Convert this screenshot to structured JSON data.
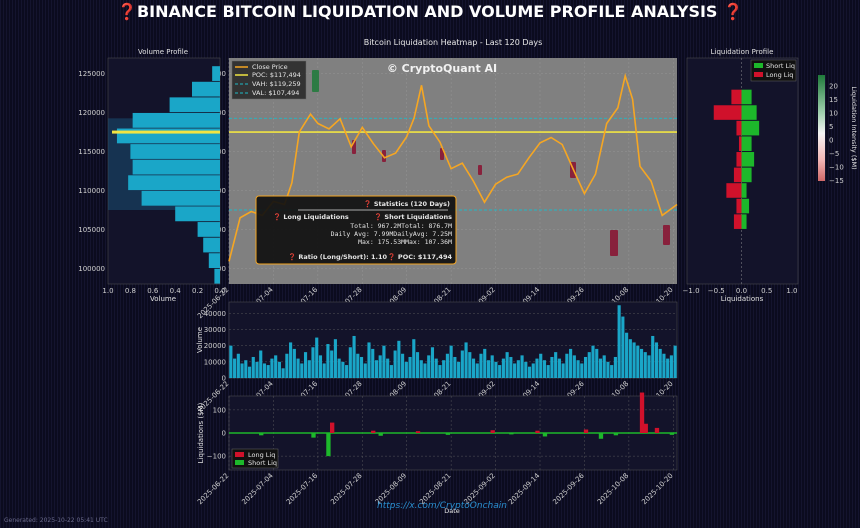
{
  "title": "❓BINANCE BITCOIN LIQUIDATION AND VOLUME PROFILE ANALYSIS ❓",
  "source_url": "https://x.com/CryptoOnchain",
  "watermark": "© CryptoQuant AI",
  "generated_note": "Generated: 2025-10-22 05:41 UTC",
  "colors": {
    "price": "#f5a623",
    "poc": "#f0e442",
    "vah": "#1fb8c6",
    "val": "#1fb8c6",
    "volume_bar": "#1aa6c8",
    "long": "#d0112b",
    "short": "#1db82b",
    "heatmap_bg": "#7f7f7f"
  },
  "stats_box": {
    "header": "❓ Statistics (120 Days)",
    "long_header": "❓ Long Liquidations",
    "short_header": "❓ Short Liquidations",
    "row_total": "Total: 967.2MTotal: 876.7M",
    "row_avg": "Daily Avg: 7.99MDailyAvg: 7.25M",
    "row_max": "Max: 175.53MMax: 107.36M",
    "footer_ratio": "❓ Ratio (Long/Short): 1.10",
    "footer_poc": "❓ POC: $117,494"
  },
  "chart_data": [
    {
      "type": "line",
      "title": "Bitcoin Liquidation Heatmap - Last 120 Days",
      "x_tick_labels": [
        "2025-06-22",
        "2025-07-04",
        "2025-07-16",
        "2025-07-28",
        "2025-08-09",
        "2025-08-21",
        "2025-09-02",
        "2025-09-14",
        "2025-09-26",
        "2025-10-08",
        "2025-10-20"
      ],
      "ylim": [
        98000,
        127000
      ],
      "y_ticks": [
        100000,
        105000,
        110000,
        115000,
        120000,
        125000
      ],
      "y_tick_labels": [
        "100000",
        "105000",
        "110000",
        "115000",
        "120000",
        "125000"
      ],
      "x_range": [
        "2025-06-22",
        "2025-10-21"
      ],
      "legend": [
        "Close Price",
        "POC: $117,494",
        "VAH: $119,259",
        "VAL: $107,494"
      ],
      "legend_position": "top-left",
      "reference_lines": {
        "poc": 117494,
        "vah": 119259,
        "val": 107494
      },
      "series": [
        {
          "name": "Close Price",
          "x": [
            "2025-06-22",
            "2025-06-25",
            "2025-06-28",
            "2025-07-01",
            "2025-07-04",
            "2025-07-07",
            "2025-07-09",
            "2025-07-11",
            "2025-07-14",
            "2025-07-16",
            "2025-07-19",
            "2025-07-22",
            "2025-07-25",
            "2025-07-28",
            "2025-07-31",
            "2025-08-03",
            "2025-08-06",
            "2025-08-09",
            "2025-08-11",
            "2025-08-13",
            "2025-08-15",
            "2025-08-18",
            "2025-08-21",
            "2025-08-24",
            "2025-08-27",
            "2025-08-30",
            "2025-09-02",
            "2025-09-05",
            "2025-09-08",
            "2025-09-11",
            "2025-09-14",
            "2025-09-17",
            "2025-09-20",
            "2025-09-23",
            "2025-09-26",
            "2025-09-29",
            "2025-10-02",
            "2025-10-05",
            "2025-10-07",
            "2025-10-09",
            "2025-10-11",
            "2025-10-14",
            "2025-10-17",
            "2025-10-21"
          ],
          "y": [
            100900,
            106500,
            107300,
            106800,
            108600,
            108200,
            111000,
            117500,
            119800,
            118600,
            117900,
            119200,
            115600,
            118100,
            116000,
            114200,
            114800,
            116900,
            119300,
            123500,
            118300,
            116200,
            112800,
            113500,
            111200,
            108500,
            110800,
            111700,
            112100,
            114200,
            116100,
            116800,
            115900,
            112700,
            109600,
            112100,
            118600,
            120600,
            124700,
            121700,
            113100,
            111200,
            106800,
            108200
          ]
        }
      ]
    },
    {
      "type": "bar",
      "title": "Volume Profile",
      "xlabel": "Volume",
      "orientation": "horizontal",
      "x_ticks": [
        1.0,
        0.8,
        0.6,
        0.4,
        0.2,
        0.0
      ],
      "price_bins": [
        99000,
        101000,
        103000,
        105000,
        107000,
        109000,
        111000,
        113000,
        115000,
        117000,
        119000,
        121000,
        123000,
        125000
      ],
      "values": [
        0.05,
        0.1,
        0.15,
        0.2,
        0.4,
        0.7,
        0.82,
        0.78,
        0.8,
        0.92,
        0.78,
        0.45,
        0.25,
        0.07
      ]
    },
    {
      "type": "bar",
      "title": "Liquidation Profile",
      "xlabel": "Liquidations",
      "orientation": "horizontal",
      "x_ticks": [
        -1.0,
        -0.5,
        0.0,
        0.5,
        1.0
      ],
      "x_tick_labels": [
        "−1.0",
        "−0.5",
        "0.0",
        "0.5",
        "1.0"
      ],
      "legend": [
        "Short Liq",
        "Long Liq"
      ],
      "colorbar_label": "Liquidation Intensity ($M)",
      "colorbar_ticks": [
        "20",
        "15",
        "10",
        "5",
        "0",
        "−5",
        "−10",
        "−15"
      ],
      "price_bins": [
        106000,
        108000,
        110000,
        112000,
        114000,
        116000,
        118000,
        120000,
        122000
      ],
      "series": [
        {
          "name": "Short Liq",
          "values": [
            0.1,
            0.15,
            0.1,
            0.2,
            0.25,
            0.2,
            0.35,
            0.3,
            0.2
          ]
        },
        {
          "name": "Long Liq",
          "values": [
            -0.15,
            -0.1,
            -0.3,
            -0.15,
            -0.1,
            -0.05,
            -0.1,
            -0.55,
            -0.2
          ]
        }
      ]
    },
    {
      "type": "bar",
      "ylabel": "Volume",
      "y_ticks": [
        0,
        10000,
        20000,
        30000,
        40000
      ],
      "y_tick_labels": [
        "0",
        "10000",
        "20000",
        "30000",
        "40000"
      ],
      "ylim": [
        0,
        47000
      ],
      "x_tick_labels": [
        "2025-06-22",
        "2025-07-04",
        "2025-07-16",
        "2025-07-28",
        "2025-08-09",
        "2025-08-21",
        "2025-09-02",
        "2025-09-14",
        "2025-09-26",
        "2025-10-08",
        "2025-10-20"
      ],
      "values": [
        20000,
        12000,
        15000,
        9000,
        11000,
        7000,
        13000,
        10000,
        17000,
        9000,
        8000,
        12000,
        14000,
        10000,
        6000,
        15000,
        22000,
        18000,
        12000,
        9000,
        16000,
        11000,
        19000,
        25000,
        14000,
        9000,
        21000,
        17000,
        24000,
        12000,
        10000,
        8000,
        19000,
        26000,
        15000,
        13000,
        9000,
        22000,
        18000,
        11000,
        14000,
        20000,
        12000,
        8000,
        17000,
        23000,
        15000,
        10000,
        13000,
        24000,
        16000,
        11000,
        9000,
        14000,
        19000,
        12000,
        8000,
        11000,
        15000,
        20000,
        13000,
        10000,
        17000,
        22000,
        16000,
        12000,
        9000,
        15000,
        18000,
        11000,
        14000,
        10000,
        8000,
        12000,
        16000,
        13000,
        9000,
        11000,
        14000,
        10000,
        7000,
        9000,
        12000,
        15000,
        11000,
        8000,
        13000,
        16000,
        12000,
        9000,
        15000,
        18000,
        14000,
        11000,
        9000,
        13000,
        16000,
        20000,
        18000,
        12000,
        14000,
        10000,
        8000,
        13000,
        45000,
        38000,
        28000,
        24000,
        22000,
        20000,
        18000,
        16000,
        14000,
        26000,
        22000,
        18000,
        15000,
        12000,
        14000,
        20000
      ]
    },
    {
      "type": "bar",
      "ylabel": "Liquidations ($M)",
      "y_ticks": [
        -100,
        0,
        100
      ],
      "y_tick_labels": [
        "−100",
        "0",
        "100"
      ],
      "ylim": [
        -160,
        160
      ],
      "legend": [
        "Long Liq",
        "Short Liq"
      ],
      "legend_position": "bottom-left",
      "xlabel": "Date",
      "x_tick_labels": [
        "2025-06-22",
        "2025-07-04",
        "2025-07-16",
        "2025-07-28",
        "2025-08-09",
        "2025-08-21",
        "2025-09-02",
        "2025-09-14",
        "2025-09-26",
        "2025-10-08",
        "2025-10-20"
      ],
      "series": [
        {
          "name": "Long Liq",
          "day_index": [
            27,
            38,
            50,
            70,
            82,
            95,
            110,
            111,
            114
          ],
          "values": [
            45,
            10,
            8,
            12,
            10,
            15,
            175,
            40,
            22
          ]
        },
        {
          "name": "Short Liq",
          "day_index": [
            8,
            22,
            26,
            40,
            58,
            75,
            84,
            99,
            103,
            118
          ],
          "values": [
            -10,
            -20,
            -100,
            -12,
            -8,
            -6,
            -15,
            -25,
            -10,
            -8
          ]
        }
      ]
    }
  ]
}
